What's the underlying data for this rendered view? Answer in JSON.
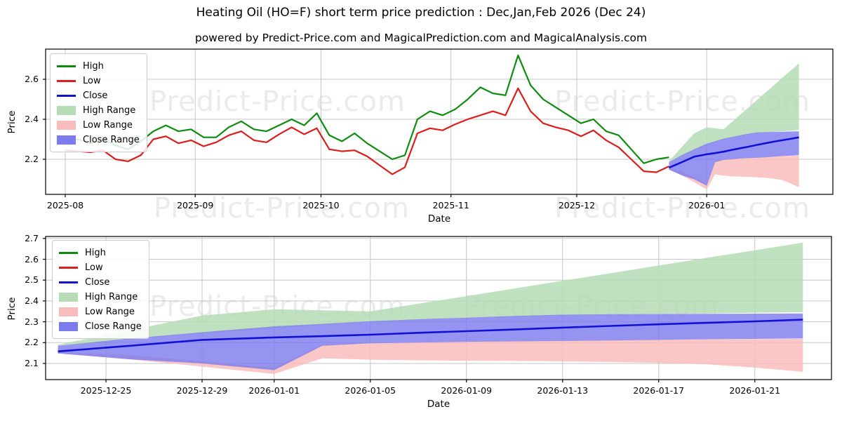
{
  "title": "Heating Oil (HO=F) short term price prediction : Dec,Jan,Feb 2026 (Dec 24)",
  "subtitle": "powered by Predict-Price.com and MagicalPrediction.com and MagicalAnalysis.com",
  "watermark": {
    "text": "Predict-Price.com",
    "color": "#ebebeb"
  },
  "colors": {
    "high_line": "#0e8c0e",
    "low_line": "#dd1c1c",
    "close_line": "#1111d6",
    "high_range_fill": "#b5dcb5",
    "low_range_fill": "#f9bcbc",
    "close_range_fill": "#7b7bee",
    "grid": "#c6c6c6",
    "spine": "#000000"
  },
  "legend": {
    "items": [
      {
        "label": "High",
        "type": "line",
        "color": "#0e8c0e"
      },
      {
        "label": "Low",
        "type": "line",
        "color": "#dd1c1c"
      },
      {
        "label": "Close",
        "type": "line",
        "color": "#1111d6"
      },
      {
        "label": "High Range",
        "type": "patch",
        "color": "#b5dcb5"
      },
      {
        "label": "Low Range",
        "type": "patch",
        "color": "#f9bcbc"
      },
      {
        "label": "Close Range",
        "type": "patch",
        "color": "#7b7bee"
      }
    ]
  },
  "forecast_series": {
    "dates": [
      "2025-12-23",
      "2025-12-26",
      "2025-12-29",
      "2026-01-01",
      "2026-01-03",
      "2026-01-05",
      "2026-01-07",
      "2026-01-09",
      "2026-01-11",
      "2026-01-13",
      "2026-01-15",
      "2026-01-17",
      "2026-01-19",
      "2026-01-21",
      "2026-01-23"
    ],
    "close": [
      2.158,
      2.185,
      2.213,
      2.225,
      2.231,
      2.238,
      2.247,
      2.255,
      2.263,
      2.272,
      2.28,
      2.288,
      2.295,
      2.302,
      2.31
    ],
    "close_upper": [
      2.185,
      2.22,
      2.25,
      2.278,
      2.29,
      2.303,
      2.312,
      2.32,
      2.328,
      2.334,
      2.336,
      2.337,
      2.338,
      2.339,
      2.34
    ],
    "close_lower": [
      2.148,
      2.12,
      2.1,
      2.068,
      2.185,
      2.197,
      2.2,
      2.204,
      2.206,
      2.208,
      2.21,
      2.213,
      2.216,
      2.218,
      2.22
    ],
    "high_upper": [
      2.19,
      2.26,
      2.33,
      2.36,
      2.355,
      2.35,
      2.387,
      2.423,
      2.46,
      2.497,
      2.533,
      2.57,
      2.607,
      2.643,
      2.68
    ],
    "high_lower": [
      2.185,
      2.215,
      2.245,
      2.27,
      2.285,
      2.3,
      2.31,
      2.318,
      2.325,
      2.33,
      2.334,
      2.337,
      2.34,
      2.343,
      2.346
    ],
    "low_upper": [
      2.155,
      2.14,
      2.11,
      2.08,
      2.19,
      2.198,
      2.202,
      2.206,
      2.208,
      2.21,
      2.212,
      2.214,
      2.216,
      2.217,
      2.218
    ],
    "low_lower": [
      2.15,
      2.12,
      2.085,
      2.05,
      2.125,
      2.118,
      2.115,
      2.113,
      2.112,
      2.11,
      2.107,
      2.103,
      2.096,
      2.08,
      2.06
    ]
  },
  "chart_data": [
    {
      "type": "line",
      "name": "history-and-forecast",
      "xlabel": "Date",
      "ylabel": "Price",
      "grid": true,
      "legend_position": "upper-left",
      "ylim": [
        2.025,
        2.75
      ],
      "y_ticks": [
        2.2,
        2.4,
        2.6
      ],
      "x_ticks": [
        {
          "label": "2025-08",
          "day": 0
        },
        {
          "label": "2025-09",
          "day": 31
        },
        {
          "label": "2025-10",
          "day": 61
        },
        {
          "label": "2025-11",
          "day": 92
        },
        {
          "label": "2025-12",
          "day": 122
        },
        {
          "label": "2026-01",
          "day": 153
        }
      ],
      "history": {
        "dates": [
          "2025-08-01",
          "2025-08-04",
          "2025-08-07",
          "2025-08-10",
          "2025-08-13",
          "2025-08-16",
          "2025-08-19",
          "2025-08-22",
          "2025-08-25",
          "2025-08-28",
          "2025-08-31",
          "2025-09-03",
          "2025-09-06",
          "2025-09-09",
          "2025-09-12",
          "2025-09-15",
          "2025-09-18",
          "2025-09-21",
          "2025-09-24",
          "2025-09-27",
          "2025-09-30",
          "2025-10-03",
          "2025-10-06",
          "2025-10-09",
          "2025-10-12",
          "2025-10-15",
          "2025-10-18",
          "2025-10-21",
          "2025-10-24",
          "2025-10-27",
          "2025-10-30",
          "2025-11-02",
          "2025-11-05",
          "2025-11-08",
          "2025-11-11",
          "2025-11-14",
          "2025-11-17",
          "2025-11-20",
          "2025-11-23",
          "2025-11-26",
          "2025-11-29",
          "2025-12-02",
          "2025-12-05",
          "2025-12-08",
          "2025-12-11",
          "2025-12-14",
          "2025-12-17",
          "2025-12-20",
          "2025-12-23"
        ],
        "days": [
          0,
          3,
          6,
          9,
          12,
          15,
          18,
          21,
          24,
          27,
          30,
          33,
          36,
          39,
          42,
          45,
          48,
          51,
          54,
          57,
          60,
          63,
          66,
          69,
          72,
          75,
          78,
          81,
          84,
          87,
          90,
          93,
          96,
          99,
          102,
          105,
          108,
          111,
          114,
          117,
          120,
          123,
          126,
          129,
          132,
          135,
          138,
          141,
          144
        ],
        "high": [
          2.29,
          2.3,
          2.28,
          2.3,
          2.27,
          2.25,
          2.29,
          2.34,
          2.37,
          2.34,
          2.35,
          2.31,
          2.31,
          2.36,
          2.39,
          2.35,
          2.34,
          2.37,
          2.4,
          2.37,
          2.43,
          2.32,
          2.29,
          2.33,
          2.28,
          2.24,
          2.2,
          2.22,
          2.4,
          2.44,
          2.42,
          2.45,
          2.5,
          2.56,
          2.53,
          2.52,
          2.72,
          2.57,
          2.5,
          2.46,
          2.42,
          2.38,
          2.4,
          2.34,
          2.32,
          2.25,
          2.18,
          2.2,
          2.21
        ],
        "low": [
          2.245,
          2.24,
          2.235,
          2.245,
          2.2,
          2.19,
          2.22,
          2.3,
          2.315,
          2.28,
          2.295,
          2.265,
          2.285,
          2.32,
          2.34,
          2.295,
          2.285,
          2.325,
          2.36,
          2.325,
          2.355,
          2.25,
          2.24,
          2.245,
          2.215,
          2.17,
          2.125,
          2.16,
          2.33,
          2.355,
          2.345,
          2.375,
          2.4,
          2.42,
          2.44,
          2.42,
          2.555,
          2.44,
          2.38,
          2.36,
          2.345,
          2.315,
          2.345,
          2.295,
          2.26,
          2.2,
          2.14,
          2.135,
          2.165
        ]
      },
      "forecast_days": [
        144,
        147,
        150,
        153,
        155,
        157,
        159,
        161,
        163,
        165,
        167,
        169,
        171,
        173,
        175
      ]
    },
    {
      "type": "line",
      "name": "forecast-detail",
      "xlabel": "Date",
      "ylabel": "Price",
      "grid": true,
      "legend_position": "upper-left",
      "ylim": [
        2.02,
        2.71
      ],
      "y_ticks": [
        2.1,
        2.2,
        2.3,
        2.4,
        2.5,
        2.6,
        2.7
      ],
      "x_ticks": [
        {
          "label": "2025-12-25",
          "day": 2
        },
        {
          "label": "2025-12-29",
          "day": 6
        },
        {
          "label": "2026-01-01",
          "day": 9
        },
        {
          "label": "2026-01-05",
          "day": 13
        },
        {
          "label": "2026-01-09",
          "day": 17
        },
        {
          "label": "2026-01-13",
          "day": 21
        },
        {
          "label": "2026-01-17",
          "day": 25
        },
        {
          "label": "2026-01-21",
          "day": 29
        }
      ],
      "forecast_days": [
        0,
        3,
        6,
        9,
        11,
        13,
        15,
        17,
        19,
        21,
        23,
        25,
        27,
        29,
        31
      ]
    }
  ]
}
